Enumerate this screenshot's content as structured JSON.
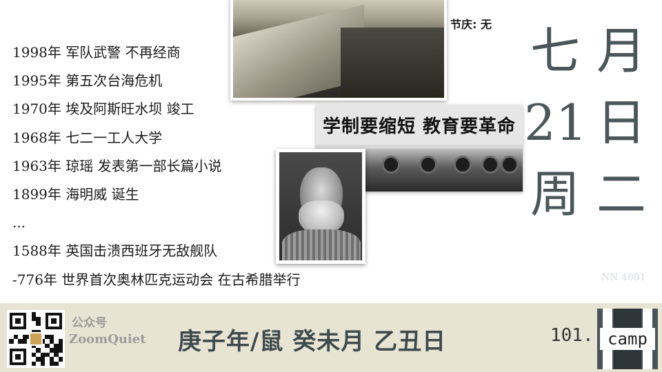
{
  "events": [
    "1998年 军队武警 不再经商",
    "1995年 第五次台海危机",
    "1970年 埃及阿斯旺水坝 竣工",
    "1968年 七二一工人大学",
    "1963年 琼瑶 发表第一部长篇小说",
    "1899年 海明威 诞生",
    "...",
    "1588年 英国击溃西班牙无敌舰队",
    "-776年 世界首次奥林匹克运动会 在古希腊举行"
  ],
  "banner_text": "学制要缩短 教育要革命",
  "festival": "节庆:  无",
  "big_date": {
    "month_num": "七",
    "month_label": "月",
    "day_num": "21",
    "day_label": "日",
    "week_label": "周",
    "week_num": "二"
  },
  "watermark": "NN 4081",
  "footer": {
    "wechat_label": "公众号",
    "account_name": "ZoomQuiet",
    "ganzhi": "庚子年/鼠  癸未月  乙丑日",
    "brand_prefix": "101.",
    "brand_suffix": "camp"
  },
  "colors": {
    "footer_bg": "#e8e4d3",
    "date_text": "#4a5659",
    "logo_bg": "#4a5458"
  }
}
